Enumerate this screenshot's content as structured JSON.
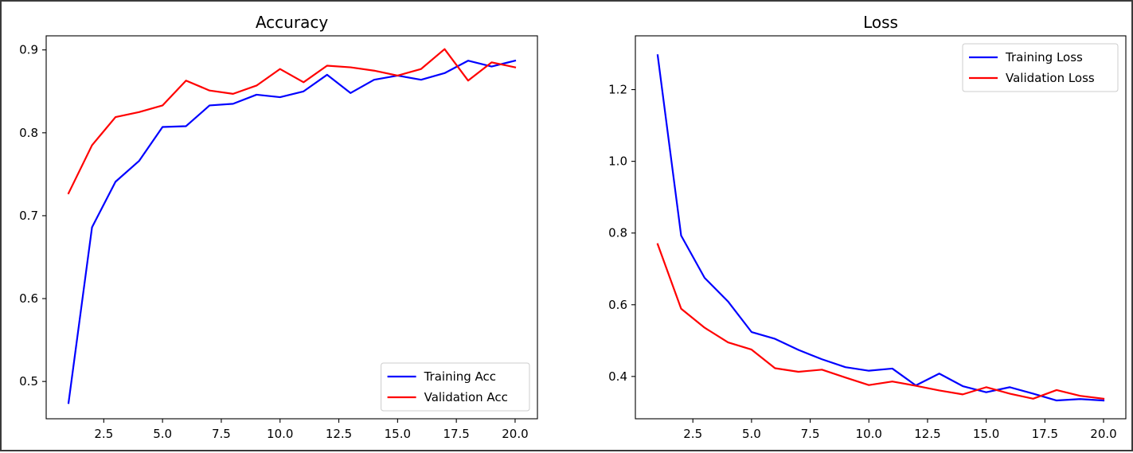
{
  "chart_data": [
    {
      "type": "line",
      "title": "Accuracy",
      "xlabel": "",
      "ylabel": "",
      "xlim": [
        0.05,
        20.95
      ],
      "ylim": [
        0.455,
        0.917
      ],
      "xticks": [
        2.5,
        5.0,
        7.5,
        10.0,
        12.5,
        15.0,
        17.5,
        20.0
      ],
      "xtick_labels": [
        "2.5",
        "5.0",
        "7.5",
        "10.0",
        "12.5",
        "15.0",
        "17.5",
        "20.0"
      ],
      "yticks": [
        0.5,
        0.6,
        0.7,
        0.8,
        0.9
      ],
      "ytick_labels": [
        "0.5",
        "0.6",
        "0.7",
        "0.8",
        "0.9"
      ],
      "grid": false,
      "legend": "lower-right",
      "x": [
        1,
        2,
        3,
        4,
        5,
        6,
        7,
        8,
        9,
        10,
        11,
        12,
        13,
        14,
        15,
        16,
        17,
        18,
        19,
        20
      ],
      "series": [
        {
          "name": "Training Acc",
          "color": "#0000ff",
          "values": [
            0.474,
            0.686,
            0.741,
            0.766,
            0.807,
            0.808,
            0.833,
            0.835,
            0.846,
            0.843,
            0.85,
            0.87,
            0.848,
            0.864,
            0.869,
            0.864,
            0.872,
            0.887,
            0.88,
            0.887
          ]
        },
        {
          "name": "Validation Acc",
          "color": "#ff0000",
          "values": [
            0.727,
            0.785,
            0.819,
            0.825,
            0.833,
            0.863,
            0.851,
            0.847,
            0.857,
            0.877,
            0.861,
            0.881,
            0.879,
            0.875,
            0.869,
            0.877,
            0.901,
            0.863,
            0.885,
            0.879
          ]
        }
      ]
    },
    {
      "type": "line",
      "title": "Loss",
      "xlabel": "",
      "ylabel": "",
      "xlim": [
        0.05,
        20.95
      ],
      "ylim": [
        0.282,
        1.35
      ],
      "xticks": [
        2.5,
        5.0,
        7.5,
        10.0,
        12.5,
        15.0,
        17.5,
        20.0
      ],
      "xtick_labels": [
        "2.5",
        "5.0",
        "7.5",
        "10.0",
        "12.5",
        "15.0",
        "17.5",
        "20.0"
      ],
      "yticks": [
        0.4,
        0.6,
        0.8,
        1.0,
        1.2
      ],
      "ytick_labels": [
        "0.4",
        "0.6",
        "0.8",
        "1.0",
        "1.2"
      ],
      "grid": false,
      "legend": "upper-right",
      "x": [
        1,
        2,
        3,
        4,
        5,
        6,
        7,
        8,
        9,
        10,
        11,
        12,
        13,
        14,
        15,
        16,
        17,
        18,
        19,
        20
      ],
      "series": [
        {
          "name": "Training Loss",
          "color": "#0000ff",
          "values": [
            1.296,
            0.793,
            0.675,
            0.609,
            0.524,
            0.505,
            0.474,
            0.448,
            0.426,
            0.416,
            0.422,
            0.375,
            0.408,
            0.373,
            0.356,
            0.37,
            0.352,
            0.333,
            0.337,
            0.333
          ]
        },
        {
          "name": "Validation Loss",
          "color": "#ff0000",
          "values": [
            0.769,
            0.589,
            0.536,
            0.495,
            0.475,
            0.423,
            0.413,
            0.419,
            0.397,
            0.376,
            0.386,
            0.374,
            0.361,
            0.35,
            0.37,
            0.352,
            0.338,
            0.362,
            0.346,
            0.338
          ]
        }
      ]
    }
  ]
}
